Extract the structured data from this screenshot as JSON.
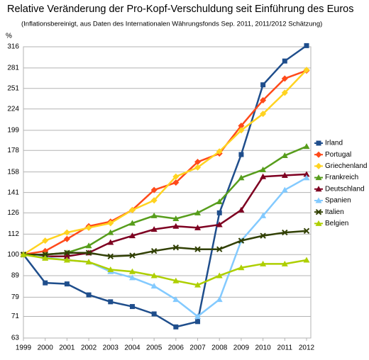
{
  "chart_data": {
    "type": "line",
    "title": "Relative Veränderung der Pro-Kopf-Verschuldung seit Einführung des Euros",
    "subtitle": "(Inflationsbereinigt, aus Daten des Internationalen Währungsfonds Sep. 2011, 2011/2012 Schätzung)",
    "y_label": "%",
    "categories": [
      "1999",
      "2000",
      "2001",
      "2002",
      "2003",
      "2004",
      "2005",
      "2006",
      "2007",
      "2008",
      "2009",
      "2010",
      "2011",
      "2012"
    ],
    "ylim": [
      63,
      316
    ],
    "log_y": true,
    "grid": true,
    "legend": "right",
    "yticks": [
      63,
      71,
      79,
      89,
      100,
      112,
      126,
      141,
      158,
      178,
      199,
      224,
      251,
      281,
      316
    ],
    "series": [
      {
        "name": "Irland",
        "color": "#1f4e8c",
        "marker": "square",
        "values": [
          100,
          85.5,
          85,
          80,
          77,
          75,
          72,
          67,
          69,
          126,
          174,
          256,
          292,
          318
        ]
      },
      {
        "name": "Portugal",
        "color": "#ff4a1a",
        "marker": "diamond",
        "values": [
          100,
          102,
          109,
          117,
          120,
          128,
          143,
          149,
          167,
          175,
          204,
          235,
          265,
          277
        ]
      },
      {
        "name": "Griechenland",
        "color": "#ffd320",
        "marker": "diamond",
        "values": [
          100,
          108,
          113,
          116,
          119,
          128,
          135,
          154,
          162,
          177,
          199,
          218,
          245,
          278
        ]
      },
      {
        "name": "Frankreich",
        "color": "#579d1c",
        "marker": "triangle",
        "values": [
          100,
          100,
          101,
          105,
          113,
          119,
          124,
          122,
          126,
          134,
          153,
          160,
          173,
          182
        ]
      },
      {
        "name": "Deutschland",
        "color": "#7e0021",
        "marker": "triangle",
        "values": [
          100,
          99,
          99,
          101,
          107,
          111,
          115,
          117,
          116,
          118,
          128,
          154,
          155,
          156
        ]
      },
      {
        "name": "Spanien",
        "color": "#83caff",
        "marker": "triangle",
        "values": [
          100,
          98.5,
          97,
          96,
          91,
          88,
          84,
          78,
          71,
          78,
          108,
          124,
          143,
          153
        ]
      },
      {
        "name": "Italien",
        "color": "#314004",
        "marker": "cross",
        "values": [
          100,
          100,
          101,
          101,
          99,
          99.5,
          102,
          104,
          103,
          103,
          108,
          111,
          113,
          114
        ]
      },
      {
        "name": "Belgien",
        "color": "#aecf00",
        "marker": "triangle",
        "values": [
          100,
          98,
          97,
          96,
          92,
          91,
          89,
          86.5,
          84.5,
          89,
          93,
          95,
          95,
          97
        ]
      }
    ]
  }
}
